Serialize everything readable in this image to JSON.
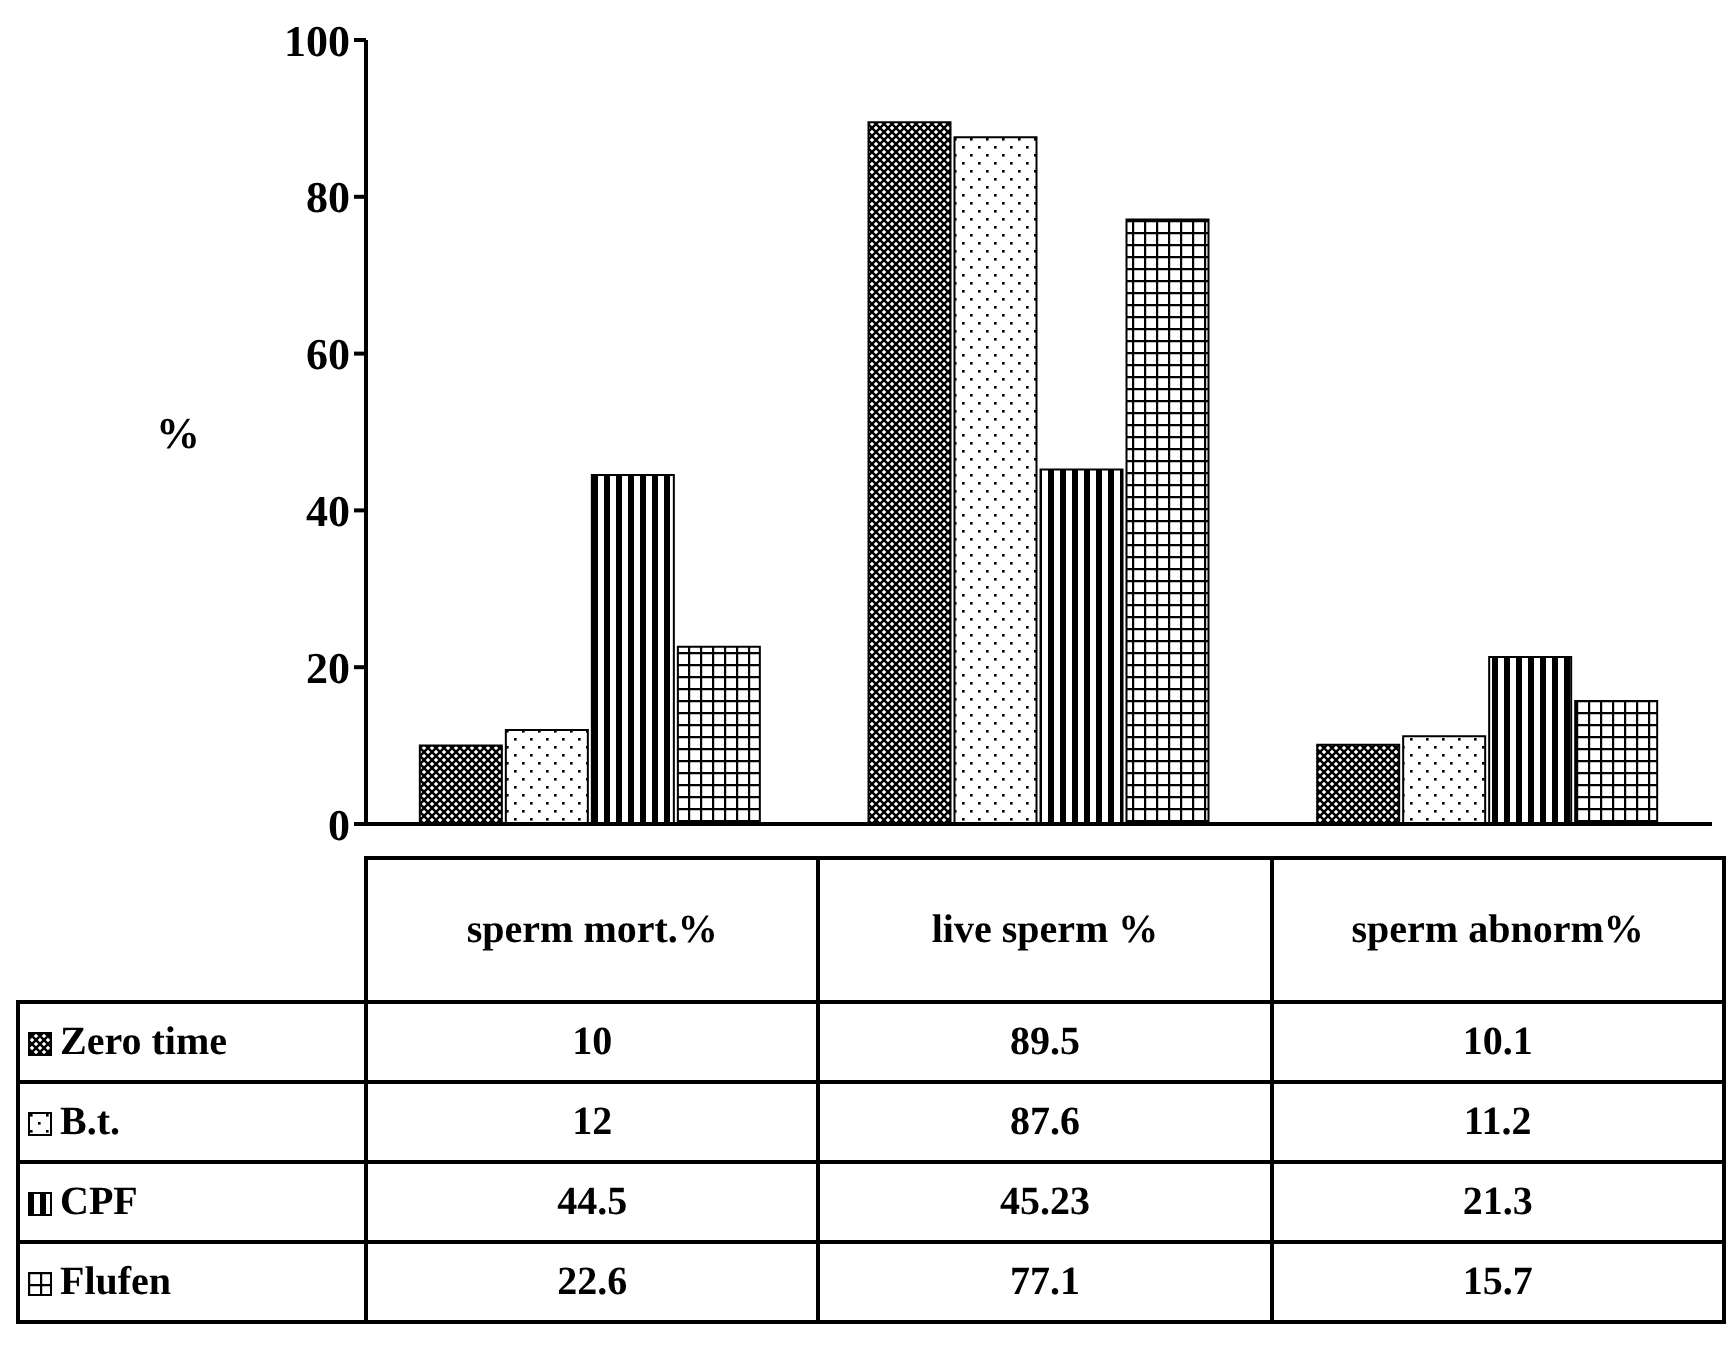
{
  "chart_data": {
    "type": "bar",
    "ylabel": "%",
    "categories": [
      "sperm mort.%",
      "live sperm %",
      "sperm abnorm%"
    ],
    "series": [
      {
        "name": "Zero time",
        "color": "#000000",
        "values": [
          10,
          89.5,
          10.1
        ]
      },
      {
        "name": "B.t.",
        "color": "#000000",
        "values": [
          12,
          87.6,
          11.2
        ]
      },
      {
        "name": "CPF",
        "color": "#000000",
        "values": [
          44.5,
          45.23,
          21.3
        ]
      },
      {
        "name": "Flufen",
        "color": "#000000",
        "values": [
          22.6,
          77.1,
          15.7
        ]
      }
    ],
    "ylim": [
      0,
      100
    ],
    "yticks": [
      0,
      20,
      40,
      60,
      80,
      100
    ],
    "legend": "bottom",
    "data_labels": true
  }
}
